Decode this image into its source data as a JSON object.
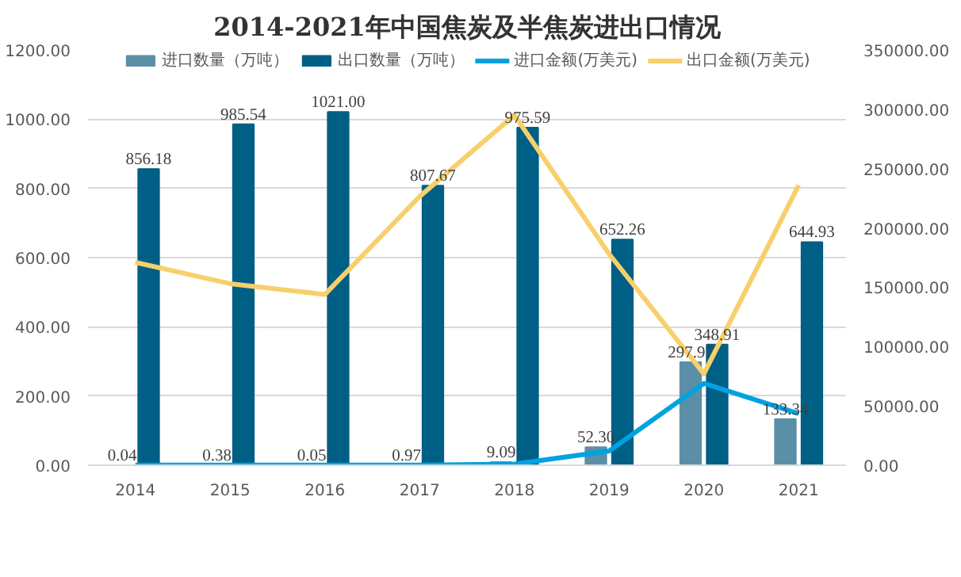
{
  "chart_data": {
    "type": "bar",
    "title": "2014-2021年中国焦炭及半焦炭进出口情况",
    "categories": [
      "2014",
      "2015",
      "2016",
      "2017",
      "2018",
      "2019",
      "2020",
      "2021"
    ],
    "series": [
      {
        "name": "进口数量（万吨）",
        "color": "#5b8fa8",
        "values": [
          0.04,
          0.38,
          0.05,
          0.97,
          9.09,
          52.3,
          297.97,
          133.34
        ],
        "value_labels": [
          "0.04",
          "0.38",
          "0.05",
          "0.97",
          "9.09",
          "52.30",
          "297.97",
          "133.34"
        ]
      },
      {
        "name": "出口数量（万吨）",
        "color": "#005f85",
        "values": [
          856.18,
          985.54,
          1021.0,
          807.67,
          975.59,
          652.26,
          348.91,
          644.93
        ],
        "value_labels": [
          "856.18",
          "985.54",
          "1021.00",
          "807.67",
          "975.59",
          "652.26",
          "348.91",
          "644.93"
        ]
      },
      {
        "name": "进口金额(万美元)",
        "type": "line",
        "axis": "y2",
        "color": "#00a2e0",
        "values": [
          100,
          100,
          100,
          100,
          1000,
          12000,
          69000,
          43500
        ]
      },
      {
        "name": "出口金额(万美元)",
        "type": "line",
        "axis": "y2",
        "color": "#f7d06b",
        "values": [
          171000,
          153000,
          144000,
          226500,
          295000,
          178000,
          77000,
          236000
        ]
      }
    ],
    "ylim": [
      0,
      1200
    ],
    "yticks": [
      {
        "value": 0,
        "label": "0.00"
      },
      {
        "value": 200,
        "label": "200.00"
      },
      {
        "value": 400,
        "label": "400.00"
      },
      {
        "value": 600,
        "label": "600.00"
      },
      {
        "value": 800,
        "label": "800.00"
      },
      {
        "value": 1000,
        "label": "1000.00"
      },
      {
        "value": 1200,
        "label": "1200.00"
      }
    ],
    "y2lim": [
      0,
      350000
    ],
    "y2ticks": [
      {
        "value": 0,
        "label": "0.00"
      },
      {
        "value": 50000,
        "label": "50000.00"
      },
      {
        "value": 100000,
        "label": "100000.00"
      },
      {
        "value": 150000,
        "label": "150000.00"
      },
      {
        "value": 200000,
        "label": "200000.00"
      },
      {
        "value": 250000,
        "label": "250000.00"
      },
      {
        "value": 300000,
        "label": "300000.00"
      },
      {
        "value": 350000,
        "label": "350000.00"
      }
    ],
    "grid": "y",
    "legend": "top"
  }
}
